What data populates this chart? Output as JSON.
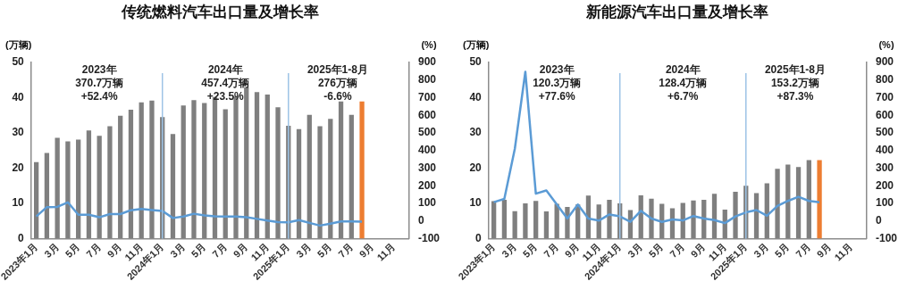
{
  "chart_data": [
    {
      "type": "bar",
      "title": "传统燃料汽车出口量及增长率",
      "ylabel": "(万辆)",
      "y2label": "(%)",
      "categories": [
        "2023年1月",
        null,
        "3月",
        null,
        "5月",
        null,
        "7月",
        null,
        "9月",
        null,
        "11月",
        null,
        "2024年1月",
        null,
        "3月",
        null,
        "5月",
        null,
        "7月",
        null,
        "9月",
        null,
        "11月",
        null,
        "2025年1月",
        null,
        "3月",
        null,
        "5月",
        null,
        "7月",
        null,
        "9月",
        null,
        "11月",
        null
      ],
      "series": [
        {
          "colors": [
            "#7f7f7f",
            "#7f7f7f",
            "#7f7f7f",
            "#7f7f7f",
            "#7f7f7f",
            "#7f7f7f",
            "#7f7f7f",
            "#7f7f7f",
            "#7f7f7f",
            "#7f7f7f",
            "#7f7f7f",
            "#7f7f7f",
            "#7f7f7f",
            "#7f7f7f",
            "#7f7f7f",
            "#7f7f7f",
            "#7f7f7f",
            "#7f7f7f",
            "#7f7f7f",
            "#7f7f7f",
            "#7f7f7f",
            "#7f7f7f",
            "#7f7f7f",
            "#7f7f7f",
            "#7f7f7f",
            "#7f7f7f",
            "#7f7f7f",
            "#7f7f7f",
            "#7f7f7f",
            "#7f7f7f",
            "#7f7f7f",
            "#ed7d31",
            "#7f7f7f",
            "#7f7f7f",
            "#7f7f7f",
            "#7f7f7f"
          ],
          "values": [
            21.7,
            24.3,
            28.6,
            27.6,
            28.1,
            30.7,
            29.2,
            31.9,
            34.9,
            36.6,
            38.7,
            39.2,
            34.5,
            29.7,
            37.8,
            39.3,
            38.5,
            40.2,
            36.7,
            40.3,
            43.0,
            41.6,
            40.9,
            37.3,
            32.0,
            31.1,
            35.1,
            31.9,
            34.0,
            38.9,
            35.1,
            38.9,
            null,
            null,
            null,
            null
          ]
        },
        {
          "type": "line",
          "axis": "y2",
          "color": "#5b9bd5",
          "values": [
            26,
            79,
            80,
            106,
            35,
            35,
            21,
            39,
            39,
            61,
            68,
            62,
            57,
            17,
            25,
            41,
            32,
            26,
            25,
            25,
            21,
            12,
            3,
            -6,
            -8,
            5,
            -11,
            -26,
            -15,
            -3,
            -3,
            -4,
            null,
            null,
            null,
            null
          ]
        }
      ],
      "ylim": [
        0,
        50
      ],
      "yticks": [
        0,
        10,
        20,
        30,
        40,
        50
      ],
      "y2lim": [
        -100,
        900
      ],
      "y2ticks": [
        -100,
        0,
        100,
        200,
        300,
        400,
        500,
        600,
        700,
        800,
        900
      ],
      "ref_lines": [
        {
          "axis": "x",
          "value": "2024年1月",
          "color": "#9dc3e6"
        },
        {
          "axis": "x",
          "value": "2025年1月",
          "color": "#9dc3e6"
        }
      ],
      "annotations": [
        "2023年\n370.7万辆\n+52.4%",
        "2024年\n457.4万辆\n+23.5%",
        "2025年1-8月\n276万辆\n-6.6%"
      ],
      "grid": false,
      "legend": false,
      "marker": "none"
    },
    {
      "type": "bar",
      "title": "新能源汽车出口量及增长率",
      "ylabel": "(万辆)",
      "y2label": "(%)",
      "categories": [
        "2023年1月",
        null,
        "3月",
        null,
        "5月",
        null,
        "7月",
        null,
        "9月",
        null,
        "11月",
        null,
        "2024年1月",
        null,
        "3月",
        null,
        "5月",
        null,
        "7月",
        null,
        "9月",
        null,
        "11月",
        null,
        "2025年1月",
        null,
        "3月",
        null,
        "5月",
        null,
        "7月",
        null,
        "9月",
        null,
        "11月",
        null
      ],
      "series": [
        {
          "colors": [
            "#7f7f7f",
            "#7f7f7f",
            "#7f7f7f",
            "#7f7f7f",
            "#7f7f7f",
            "#7f7f7f",
            "#7f7f7f",
            "#7f7f7f",
            "#7f7f7f",
            "#7f7f7f",
            "#7f7f7f",
            "#7f7f7f",
            "#7f7f7f",
            "#7f7f7f",
            "#7f7f7f",
            "#7f7f7f",
            "#7f7f7f",
            "#7f7f7f",
            "#7f7f7f",
            "#7f7f7f",
            "#7f7f7f",
            "#7f7f7f",
            "#7f7f7f",
            "#7f7f7f",
            "#7f7f7f",
            "#7f7f7f",
            "#7f7f7f",
            "#7f7f7f",
            "#7f7f7f",
            "#7f7f7f",
            "#7f7f7f",
            "#ed7d31",
            "#7f7f7f",
            "#7f7f7f",
            "#7f7f7f",
            "#7f7f7f"
          ],
          "values": [
            10.6,
            11.0,
            7.8,
            10.0,
            10.7,
            7.7,
            9.9,
            9.0,
            9.7,
            12.2,
            9.7,
            11.0,
            10.0,
            8.1,
            12.3,
            11.3,
            9.9,
            8.6,
            10.1,
            10.8,
            11.0,
            12.7,
            8.2,
            13.3,
            15.0,
            12.9,
            15.7,
            19.8,
            21.0,
            20.3,
            22.3,
            22.3,
            null,
            null,
            null,
            null
          ]
        },
        {
          "type": "line",
          "axis": "y2",
          "color": "#5b9bd5",
          "values": [
            107,
            125,
            410,
            847,
            155,
            173,
            93,
            14,
            93,
            14,
            2,
            37,
            26,
            -5,
            58,
            14,
            -5,
            9,
            3,
            28,
            14,
            5,
            -12,
            26,
            49,
            62,
            30,
            85,
            114,
            137,
            114,
            106,
            null,
            null,
            null,
            null
          ]
        }
      ],
      "ylim": [
        0,
        50
      ],
      "yticks": [
        0,
        10,
        20,
        30,
        40,
        50
      ],
      "y2lim": [
        -100,
        900
      ],
      "y2ticks": [
        -100,
        0,
        100,
        200,
        300,
        400,
        500,
        600,
        700,
        800,
        900
      ],
      "ref_lines": [
        {
          "axis": "x",
          "value": "2024年1月",
          "color": "#9dc3e6"
        },
        {
          "axis": "x",
          "value": "2025年1月",
          "color": "#9dc3e6"
        }
      ],
      "annotations": [
        "2023年\n120.3万辆\n+77.6%",
        "2024年\n128.4万辆\n+6.7%",
        "2025年1-8月\n153.2万辆\n+87.3%"
      ],
      "grid": false,
      "legend": false,
      "marker": "none"
    }
  ]
}
